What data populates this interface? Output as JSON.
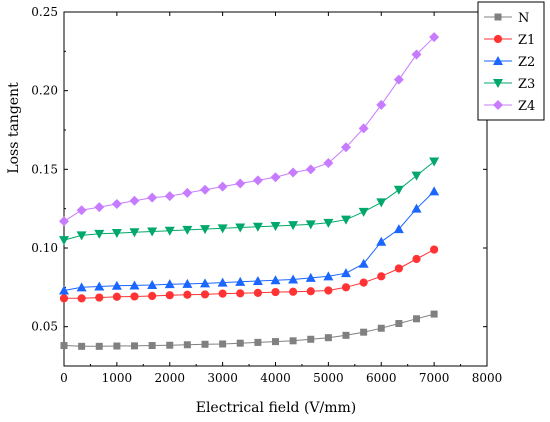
{
  "chart_data": {
    "type": "line",
    "title": "",
    "xlabel": "Electrical field (V/mm)",
    "ylabel": "Loss tangent",
    "xlim": [
      0,
      8000
    ],
    "ylim": [
      0.025,
      0.25
    ],
    "xticks": [
      "0",
      "1000",
      "2000",
      "3000",
      "4000",
      "5000",
      "6000",
      "7000",
      "8000"
    ],
    "yticks": [
      "0.05",
      "0.10",
      "0.15",
      "0.20",
      "0.25"
    ],
    "grid": false,
    "legend_position": "top-right",
    "x": [
      0,
      333,
      667,
      1000,
      1333,
      1667,
      2000,
      2333,
      2667,
      3000,
      3333,
      3667,
      4000,
      4333,
      4667,
      5000,
      5333,
      5667,
      6000,
      6333,
      6667,
      7000
    ],
    "series": [
      {
        "name": "N",
        "marker": "square",
        "color": "#808080",
        "values": [
          0.038,
          0.0375,
          0.0375,
          0.0377,
          0.0378,
          0.038,
          0.0382,
          0.0385,
          0.0388,
          0.039,
          0.0395,
          0.04,
          0.0405,
          0.041,
          0.042,
          0.043,
          0.0445,
          0.0465,
          0.049,
          0.052,
          0.055,
          0.058
        ]
      },
      {
        "name": "Z1",
        "marker": "circle",
        "color": "#ff3333",
        "values": [
          0.068,
          0.068,
          0.0685,
          0.069,
          0.0692,
          0.0695,
          0.07,
          0.0703,
          0.0705,
          0.071,
          0.0712,
          0.0715,
          0.072,
          0.0722,
          0.0725,
          0.073,
          0.075,
          0.078,
          0.082,
          0.087,
          0.093,
          0.099
        ]
      },
      {
        "name": "Z2",
        "marker": "triangle-up",
        "color": "#1a66ff",
        "values": [
          0.073,
          0.075,
          0.0755,
          0.076,
          0.0762,
          0.0765,
          0.077,
          0.0772,
          0.0775,
          0.078,
          0.0785,
          0.079,
          0.0795,
          0.08,
          0.081,
          0.082,
          0.084,
          0.09,
          0.104,
          0.112,
          0.125,
          0.136
        ]
      },
      {
        "name": "Z3",
        "marker": "triangle-down",
        "color": "#00a86b",
        "values": [
          0.105,
          0.108,
          0.109,
          0.1095,
          0.11,
          0.1105,
          0.111,
          0.1115,
          0.112,
          0.1125,
          0.113,
          0.1135,
          0.114,
          0.1145,
          0.115,
          0.116,
          0.118,
          0.123,
          0.129,
          0.137,
          0.146,
          0.155
        ]
      },
      {
        "name": "Z4",
        "marker": "diamond",
        "color": "#c77cff",
        "values": [
          0.117,
          0.124,
          0.126,
          0.128,
          0.13,
          0.132,
          0.133,
          0.135,
          0.137,
          0.139,
          0.141,
          0.143,
          0.145,
          0.148,
          0.15,
          0.154,
          0.164,
          0.176,
          0.191,
          0.207,
          0.223,
          0.234
        ]
      }
    ]
  }
}
